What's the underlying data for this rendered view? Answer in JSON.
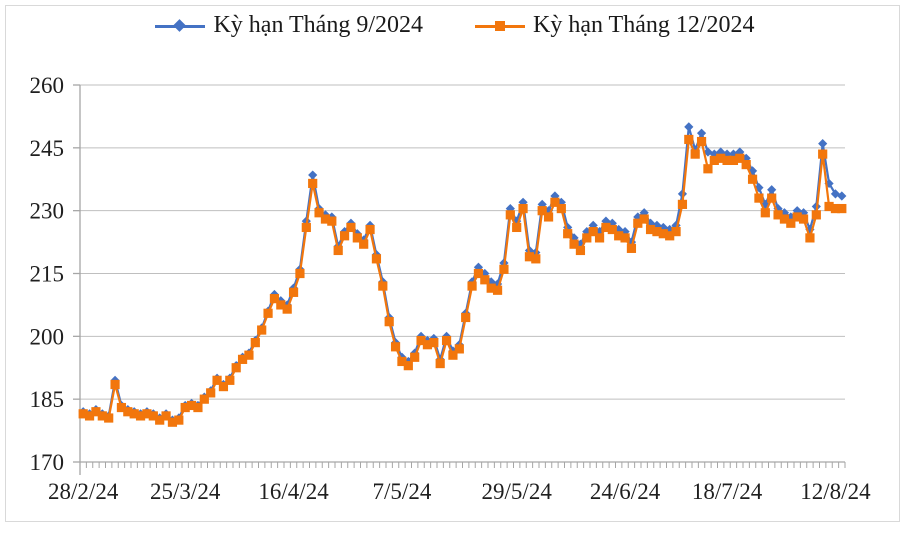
{
  "legend": {
    "series1_label": "Kỳ hạn Tháng 9/2024",
    "series2_label": "Kỳ hạn Tháng 12/2024"
  },
  "colors": {
    "series1": "#4472c4",
    "series2": "#f2760c",
    "gridline": "#bfbfbf",
    "axis": "#a6a6a6",
    "label_text": "#1f1f1f",
    "frame": "#d9d9d9",
    "background": "#ffffff"
  },
  "chart_data": {
    "type": "line",
    "title": "",
    "xlabel": "",
    "ylabel": "",
    "legend_position": "top-center",
    "grid": "horizontal",
    "y_axis": {
      "min": 170,
      "max": 260,
      "step": 15,
      "ticks": [
        170,
        185,
        200,
        215,
        230,
        245,
        260
      ]
    },
    "x_axis": {
      "minor_ticks": "every-point",
      "tick_labels": [
        {
          "index": 0,
          "text": "28/2/24"
        },
        {
          "index": 16,
          "text": "25/3/24"
        },
        {
          "index": 33,
          "text": "16/4/24"
        },
        {
          "index": 50,
          "text": "7/5/24"
        },
        {
          "index": 68,
          "text": "29/5/24"
        },
        {
          "index": 85,
          "text": "24/6/24"
        },
        {
          "index": 101,
          "text": "18/7/24"
        },
        {
          "index": 118,
          "text": "12/8/24"
        }
      ]
    },
    "series": [
      {
        "name": "Kỳ hạn Tháng 9/2024",
        "marker": "diamond",
        "color": "#4472c4",
        "values": [
          182,
          181.5,
          182.5,
          181.5,
          181,
          189.5,
          183.5,
          182.5,
          182,
          181.5,
          182,
          181.5,
          180.5,
          181.5,
          180,
          180.5,
          183.5,
          184,
          183.5,
          185.5,
          187,
          190,
          188.5,
          190,
          193,
          195,
          196,
          199,
          202,
          206,
          210,
          208.5,
          207.5,
          211.5,
          216,
          227.5,
          238.5,
          230.5,
          229,
          228.5,
          221.5,
          225,
          227,
          224.5,
          223,
          226.5,
          219.5,
          213,
          204.5,
          198.5,
          195,
          194,
          196,
          200,
          199,
          199.5,
          194.5,
          200,
          196.5,
          198,
          205.5,
          213,
          216.5,
          215,
          213,
          212.5,
          217.5,
          230.5,
          227.5,
          232,
          220.5,
          220,
          231.5,
          230,
          233.5,
          232,
          226,
          223.5,
          222,
          225,
          226.5,
          225,
          227.5,
          227,
          225.5,
          225,
          222.5,
          228.5,
          229.5,
          227,
          226.5,
          226,
          225.5,
          226.5,
          234,
          250,
          244.5,
          248.5,
          244,
          243.5,
          244,
          243.5,
          243.5,
          244,
          242.5,
          239.5,
          235.5,
          231.5,
          235,
          230.5,
          229.5,
          228.5,
          230,
          229.5,
          225.5,
          231,
          246,
          236.5,
          234,
          233.5
        ]
      },
      {
        "name": "Kỳ hạn Tháng 12/2024",
        "marker": "square",
        "color": "#f2760c",
        "values": [
          181.5,
          181,
          182,
          181,
          180.5,
          188.5,
          183,
          182,
          181.5,
          181,
          181.5,
          181,
          180,
          181,
          179.5,
          180,
          183,
          183.5,
          183,
          185,
          186.5,
          189.5,
          188,
          189.5,
          192.5,
          194.5,
          195.5,
          198.5,
          201.5,
          205.5,
          209,
          207.5,
          206.5,
          210.5,
          215,
          226,
          236.5,
          229.5,
          228,
          227.5,
          220.5,
          224,
          226,
          223.5,
          222,
          225.5,
          218.5,
          212,
          203.5,
          197.5,
          194,
          193,
          195,
          199,
          198,
          198.5,
          193.5,
          199,
          195.5,
          197,
          204.5,
          212,
          215,
          213.5,
          211.5,
          211,
          216,
          229,
          226,
          230.5,
          219,
          218.5,
          230,
          228.5,
          232,
          230.5,
          224.5,
          222,
          220.5,
          223.5,
          225,
          223.5,
          226,
          225.5,
          224,
          223.5,
          221,
          227,
          228,
          225.5,
          225,
          224.5,
          224,
          225,
          231.5,
          247,
          243.5,
          246.5,
          240,
          242,
          242.5,
          242,
          242,
          242.5,
          241,
          237.5,
          233,
          229.5,
          233,
          229,
          228,
          227,
          228.5,
          228,
          223.5,
          229,
          243.5,
          231,
          230.5,
          230.5
        ]
      }
    ]
  }
}
